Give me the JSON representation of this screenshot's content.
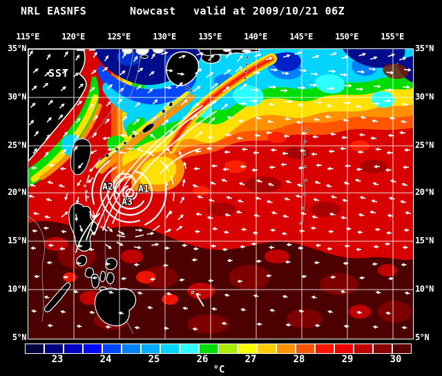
{
  "title": {
    "product": "NRL EASNFS",
    "mode": "Nowcast",
    "valid": "valid at 2009/10/21 06Z"
  },
  "map": {
    "field_label": "SST",
    "lon_ticks": [
      "115°E",
      "120°E",
      "125°E",
      "130°E",
      "135°E",
      "140°E",
      "145°E",
      "150°E",
      "155°E"
    ],
    "lat_ticks": [
      "35°N",
      "30°N",
      "25°N",
      "20°N",
      "15°N",
      "10°N",
      "5°N"
    ],
    "annotations": [
      {
        "id": "A1"
      },
      {
        "id": "A2"
      },
      {
        "id": "A3"
      }
    ]
  },
  "colorbar": {
    "unit": "°C",
    "ticks": [
      "23",
      "24",
      "25",
      "26",
      "27",
      "28",
      "29",
      "30"
    ],
    "cell_colors": [
      "#000041",
      "#000083",
      "#0000c4",
      "#0008ff",
      "#0048ff",
      "#0082ff",
      "#00acff",
      "#00d4ff",
      "#2bffff",
      "#00dd00",
      "#a8ee00",
      "#ffff00",
      "#ffcc00",
      "#ff9100",
      "#ff5500",
      "#ff1400",
      "#ee0000",
      "#c00000",
      "#8e0000",
      "#5a0000"
    ]
  }
}
